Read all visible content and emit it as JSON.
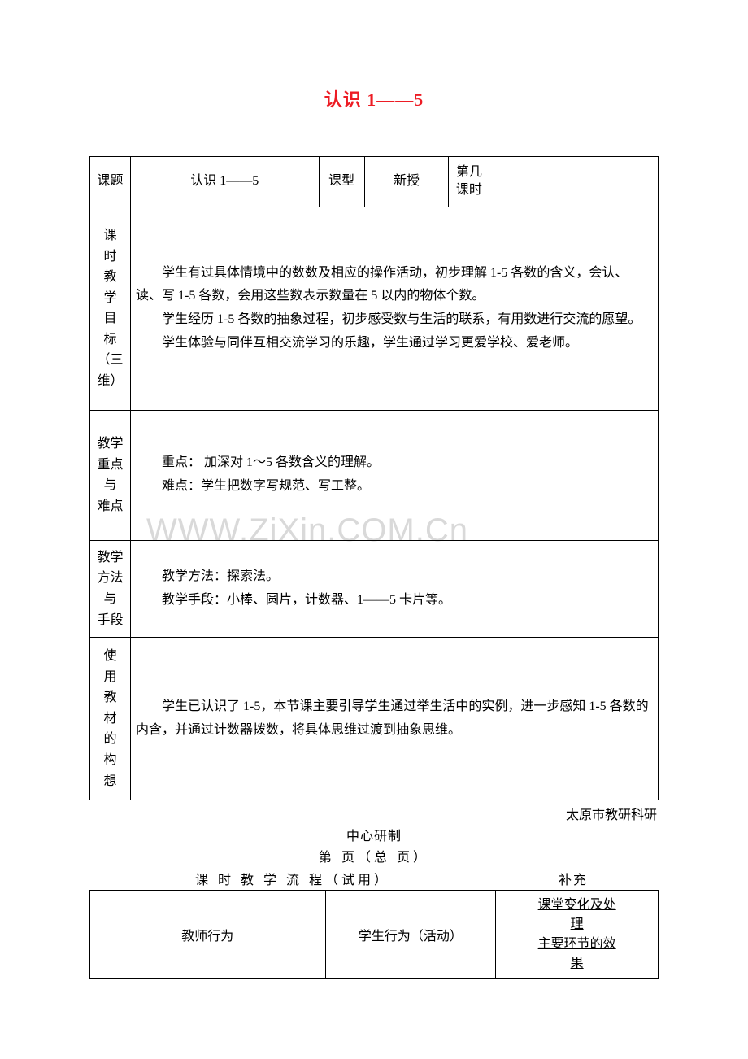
{
  "title": "认识 1——5",
  "colors": {
    "title": "#ed1c24",
    "text": "#000000",
    "border": "#000000",
    "background": "#ffffff",
    "watermark": "#d9d9d9"
  },
  "watermark": "WWW.ZiXin.COM.Cn",
  "row1": {
    "c1": "课题",
    "c2": "认识 1——5",
    "c3": "课型",
    "c4": "新授",
    "c5": "第几\n课时",
    "c6": ""
  },
  "rows": {
    "objectives": {
      "head": "课\n时\n教\n学\n目\n标\n（三维）",
      "p1": "学生有过具体情境中的数数及相应的操作活动，初步理解 1-5 各数的含义，会认、读、写 1-5 各数，会用这些数表示数量在 5 以内的物体个数。",
      "p2": "学生经历 1-5 各数的抽象过程，初步感受数与生活的联系，有用数进行交流的愿望。",
      "p3": "学生体验与同伴互相交流学习的乐趣，学生通过学习更爱学校、爱老师。"
    },
    "focus": {
      "head": "教学\n重点\n与\n难点",
      "p1": "重点：  加深对 1～5 各数含义的理解。",
      "p2": "难点：学生把数字写规范、写工整。"
    },
    "method": {
      "head": "教学\n方法\n与\n手段",
      "p1": "教学方法：探索法。",
      "p2": "教学手段：小棒、圆片，计数器、1——5 卡片等。"
    },
    "concept": {
      "head": "使\n用\n教\n材\n的\n构\n想",
      "p1": "学生已认识了 1-5，本节课主要引导学生通过举生活中的实例，进一步感知 1-5 各数的内含，并通过计数器拨数，将具体思维过渡到抽象思维。"
    }
  },
  "footer": {
    "source_right": "太原市教研科研",
    "source_center": "中心研制",
    "page_line": "第    页（总    页）",
    "flow_title_left": "课 时 教 学 流 程（试用）",
    "flow_title_right": "补充"
  },
  "flow_table": {
    "c1": "教师行为",
    "c2": "学生行为（活动）",
    "c3a": "课堂变化及处理",
    "c3a_l1": "课堂变化及处",
    "c3a_l2": "理",
    "c3b": "主要环节的效果",
    "c3b_l1": "主要环节的效",
    "c3b_l2": "果"
  }
}
